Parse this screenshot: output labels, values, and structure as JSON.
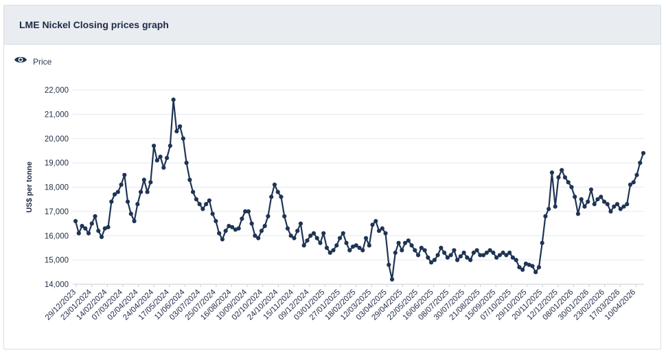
{
  "header": {
    "title": "LME Nickel Closing prices graph"
  },
  "legend": {
    "icon": "eye-icon",
    "label": "Price"
  },
  "colors": {
    "series": "#1f3454",
    "grid": "#e3e7ec",
    "header_bg": "#e9edf2"
  },
  "chart_data": {
    "type": "line",
    "title": "LME Nickel Closing prices graph",
    "xlabel": "",
    "ylabel": "US$ per tonne",
    "ylim": [
      14000,
      22000
    ],
    "yticks": [
      "14,000",
      "15,000",
      "16,000",
      "17,000",
      "18,000",
      "19,000",
      "20,000",
      "21,000",
      "22,000"
    ],
    "xticks": [
      "29/12/2023",
      "23/01/2024",
      "14/02/2024",
      "07/03/2024",
      "02/04/2024",
      "24/04/2024",
      "17/05/2024",
      "11/06/2024",
      "03/07/2024",
      "25/07/2024",
      "16/08/2024",
      "10/09/2024",
      "02/10/2024",
      "24/10/2024",
      "15/11/2024",
      "09/12/2024",
      "03/01/2025",
      "27/01/2025",
      "18/02/2025",
      "12/03/2025",
      "03/04/2025",
      "29/04/2025",
      "22/05/2025",
      "16/06/2025",
      "08/07/2025",
      "30/07/2025",
      "21/08/2025",
      "15/09/2025",
      "07/10/2025",
      "29/10/2025",
      "20/11/2025",
      "12/12/2025",
      "08/01/2026",
      "30/01/2026",
      "23/02/2026",
      "17/03/2026",
      "10/04/2026"
    ],
    "grid": true,
    "legend": "top-left",
    "series": [
      {
        "name": "Price",
        "values": [
          16600,
          16100,
          16400,
          16300,
          16100,
          16500,
          16800,
          16200,
          15950,
          16300,
          16350,
          17400,
          17700,
          17800,
          18100,
          18500,
          17400,
          16900,
          16600,
          17300,
          17800,
          18300,
          17800,
          18200,
          19700,
          19100,
          19250,
          18800,
          19200,
          19700,
          21600,
          20300,
          20500,
          20000,
          19000,
          18300,
          17800,
          17500,
          17300,
          17100,
          17300,
          17450,
          16900,
          16600,
          16100,
          15850,
          16200,
          16400,
          16350,
          16250,
          16300,
          16700,
          17000,
          17000,
          16500,
          16000,
          15900,
          16200,
          16400,
          16800,
          17600,
          18100,
          17800,
          17600,
          16800,
          16300,
          16000,
          15900,
          16200,
          16500,
          15600,
          15800,
          16000,
          16100,
          15900,
          15700,
          16100,
          15500,
          15300,
          15400,
          15600,
          15900,
          16100,
          15700,
          15400,
          15550,
          15600,
          15500,
          15400,
          15900,
          15600,
          16450,
          16600,
          16200,
          16300,
          16100,
          14800,
          14200,
          15300,
          15700,
          15400,
          15700,
          15800,
          15600,
          15400,
          15200,
          15500,
          15400,
          15100,
          14900,
          15000,
          15200,
          15500,
          15300,
          15100,
          15200,
          15400,
          15000,
          15150,
          15300,
          15100,
          15000,
          15300,
          15400,
          15200,
          15200,
          15300,
          15400,
          15300,
          15100,
          15200,
          15300,
          15200,
          15300,
          15100,
          15000,
          14700,
          14600,
          14850,
          14800,
          14750,
          14500,
          14700,
          15700,
          16800,
          17100,
          18600,
          17200,
          18400,
          18700,
          18400,
          18200,
          18000,
          17600,
          16900,
          17500,
          17200,
          17400,
          17900,
          17300,
          17500,
          17600,
          17400,
          17300,
          17000,
          17200,
          17300,
          17100,
          17200,
          17300,
          18100,
          18200,
          18500,
          19000,
          19400
        ]
      }
    ]
  }
}
